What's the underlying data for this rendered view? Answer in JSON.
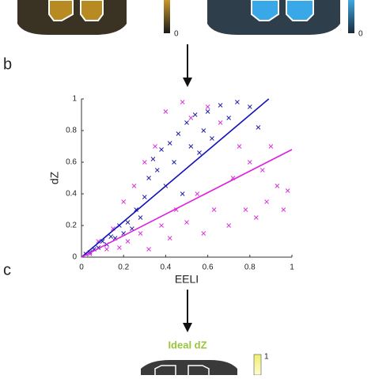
{
  "figure": {
    "top_colorbar_labels": [
      "0",
      "0"
    ],
    "panel_labels": [
      "b",
      "c"
    ],
    "bottom_title": "Ideal dZ",
    "bottom_colorbar_label": "1"
  },
  "chart_data": {
    "type": "scatter",
    "xlabel": "EELI",
    "ylabel": "dZ",
    "xlim": [
      0,
      1
    ],
    "ylim": [
      0,
      1
    ],
    "xticks": [
      0,
      0.2,
      0.4,
      0.6,
      0.8,
      1
    ],
    "yticks": [
      0,
      0.2,
      0.4,
      0.6,
      0.8,
      1
    ],
    "series": [
      {
        "color": "#2222aa",
        "x": [
          0.02,
          0.04,
          0.06,
          0.08,
          0.1,
          0.12,
          0.14,
          0.16,
          0.18,
          0.2,
          0.22,
          0.24,
          0.26,
          0.28,
          0.3,
          0.32,
          0.34,
          0.36,
          0.38,
          0.4,
          0.42,
          0.44,
          0.46,
          0.48,
          0.5,
          0.52,
          0.54,
          0.56,
          0.58,
          0.6,
          0.62,
          0.66,
          0.7,
          0.74,
          0.8,
          0.84
        ],
        "values": [
          0.02,
          0.03,
          0.05,
          0.06,
          0.1,
          0.08,
          0.13,
          0.12,
          0.2,
          0.15,
          0.22,
          0.18,
          0.3,
          0.25,
          0.38,
          0.5,
          0.62,
          0.55,
          0.68,
          0.45,
          0.72,
          0.6,
          0.78,
          0.4,
          0.85,
          0.7,
          0.9,
          0.66,
          0.8,
          0.92,
          0.75,
          0.96,
          0.88,
          0.98,
          0.95,
          0.82
        ]
      },
      {
        "color": "#dd33dd",
        "x": [
          0.04,
          0.08,
          0.12,
          0.15,
          0.18,
          0.2,
          0.22,
          0.25,
          0.28,
          0.3,
          0.32,
          0.35,
          0.38,
          0.4,
          0.42,
          0.45,
          0.48,
          0.5,
          0.52,
          0.55,
          0.58,
          0.6,
          0.63,
          0.66,
          0.7,
          0.72,
          0.75,
          0.78,
          0.8,
          0.83,
          0.86,
          0.88,
          0.9,
          0.93,
          0.96,
          0.98
        ],
        "values": [
          0.02,
          0.1,
          0.05,
          0.18,
          0.06,
          0.35,
          0.1,
          0.45,
          0.15,
          0.6,
          0.05,
          0.7,
          0.2,
          0.92,
          0.12,
          0.3,
          0.98,
          0.22,
          0.88,
          0.4,
          0.15,
          0.95,
          0.3,
          0.85,
          0.2,
          0.5,
          0.7,
          0.3,
          0.6,
          0.25,
          0.55,
          0.35,
          0.7,
          0.45,
          0.3,
          0.42
        ]
      }
    ],
    "fits": [
      {
        "color": "#1111bb",
        "x": [
          0,
          0.89
        ],
        "values": [
          0,
          1
        ]
      },
      {
        "color": "#dd22dd",
        "x": [
          0,
          1
        ],
        "values": [
          0,
          0.68
        ]
      }
    ]
  }
}
